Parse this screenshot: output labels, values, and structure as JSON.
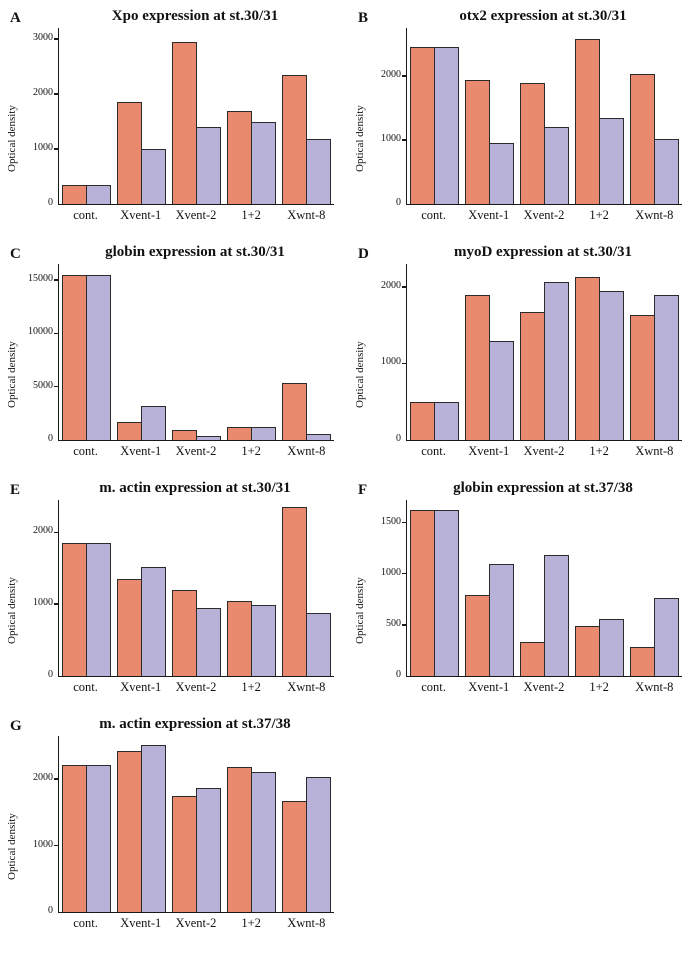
{
  "figure": {
    "y_axis_label": "Optical density",
    "categories": [
      "cont.",
      "Xvent-1",
      "Xvent-2",
      "1+2",
      "Xwnt-8"
    ],
    "series_colors": {
      "salmon": "#e98a6e",
      "lavender": "#b9b2d8"
    },
    "axis_color": "#1a1a1a"
  },
  "chart_data": [
    {
      "type": "bar",
      "panel": "A",
      "title": "Xpo expression at st.30/31",
      "ylabel": "Optical density",
      "categories": [
        "cont.",
        "Xvent-1",
        "Xvent-2",
        "1+2",
        "Xwnt-8"
      ],
      "series": [
        {
          "name": "salmon",
          "values": [
            350,
            1850,
            2950,
            1700,
            2350
          ]
        },
        {
          "name": "lavender",
          "values": [
            350,
            1000,
            1400,
            1500,
            1180
          ]
        }
      ],
      "ylim": [
        0,
        3200
      ],
      "yticks": [
        0,
        1000,
        2000,
        3000
      ],
      "grid": false,
      "legend": "none"
    },
    {
      "type": "bar",
      "panel": "B",
      "title": "otx2 expression at st.30/31",
      "ylabel": "Optical density",
      "categories": [
        "cont.",
        "Xvent-1",
        "Xvent-2",
        "1+2",
        "Xwnt-8"
      ],
      "series": [
        {
          "name": "salmon",
          "values": [
            2450,
            1930,
            1890,
            2580,
            2030
          ]
        },
        {
          "name": "lavender",
          "values": [
            2450,
            950,
            1200,
            1350,
            1020
          ]
        }
      ],
      "ylim": [
        0,
        2750
      ],
      "yticks": [
        0,
        1000,
        2000
      ],
      "grid": false,
      "legend": "none"
    },
    {
      "type": "bar",
      "panel": "C",
      "title": "globin expression at st.30/31",
      "ylabel": "Optical density",
      "categories": [
        "cont.",
        "Xvent-1",
        "Xvent-2",
        "1+2",
        "Xwnt-8"
      ],
      "series": [
        {
          "name": "salmon",
          "values": [
            15500,
            1700,
            900,
            1200,
            5300
          ]
        },
        {
          "name": "lavender",
          "values": [
            15500,
            3200,
            400,
            1200,
            600
          ]
        }
      ],
      "ylim": [
        0,
        16500
      ],
      "yticks": [
        0,
        5000,
        10000,
        15000
      ],
      "grid": false,
      "legend": "none"
    },
    {
      "type": "bar",
      "panel": "D",
      "title": "myoD expression at st.30/31",
      "ylabel": "Optical density",
      "categories": [
        "cont.",
        "Xvent-1",
        "Xvent-2",
        "1+2",
        "Xwnt-8"
      ],
      "series": [
        {
          "name": "salmon",
          "values": [
            500,
            1890,
            1670,
            2130,
            1630
          ]
        },
        {
          "name": "lavender",
          "values": [
            500,
            1300,
            2060,
            1950,
            1890
          ]
        }
      ],
      "ylim": [
        0,
        2300
      ],
      "yticks": [
        0,
        1000,
        2000
      ],
      "grid": false,
      "legend": "none"
    },
    {
      "type": "bar",
      "panel": "E",
      "title": "m. actin expression at st.30/31",
      "ylabel": "Optical density",
      "categories": [
        "cont.",
        "Xvent-1",
        "Xvent-2",
        "1+2",
        "Xwnt-8"
      ],
      "series": [
        {
          "name": "salmon",
          "values": [
            1850,
            1350,
            1200,
            1050,
            2350
          ]
        },
        {
          "name": "lavender",
          "values": [
            1850,
            1520,
            950,
            990,
            880
          ]
        }
      ],
      "ylim": [
        0,
        2450
      ],
      "yticks": [
        0,
        1000,
        2000
      ],
      "grid": false,
      "legend": "none"
    },
    {
      "type": "bar",
      "panel": "F",
      "title": "globin expression at st.37/38",
      "ylabel": "Optical density",
      "categories": [
        "cont.",
        "Xvent-1",
        "Xvent-2",
        "1+2",
        "Xwnt-8"
      ],
      "series": [
        {
          "name": "salmon",
          "values": [
            1620,
            790,
            330,
            490,
            280
          ]
        },
        {
          "name": "lavender",
          "values": [
            1620,
            1090,
            1180,
            560,
            760
          ]
        }
      ],
      "ylim": [
        0,
        1720
      ],
      "yticks": [
        0,
        500,
        1000,
        1500
      ],
      "grid": false,
      "legend": "none"
    },
    {
      "type": "bar",
      "panel": "G",
      "title": "m. actin expression at st.37/38",
      "ylabel": "Optical density",
      "categories": [
        "cont.",
        "Xvent-1",
        "Xvent-2",
        "1+2",
        "Xwnt-8"
      ],
      "series": [
        {
          "name": "salmon",
          "values": [
            2220,
            2420,
            1740,
            2180,
            1670
          ]
        },
        {
          "name": "lavender",
          "values": [
            2220,
            2520,
            1860,
            2110,
            2040
          ]
        }
      ],
      "ylim": [
        0,
        2650
      ],
      "yticks": [
        0,
        1000,
        2000
      ],
      "grid": false,
      "legend": "none"
    }
  ]
}
